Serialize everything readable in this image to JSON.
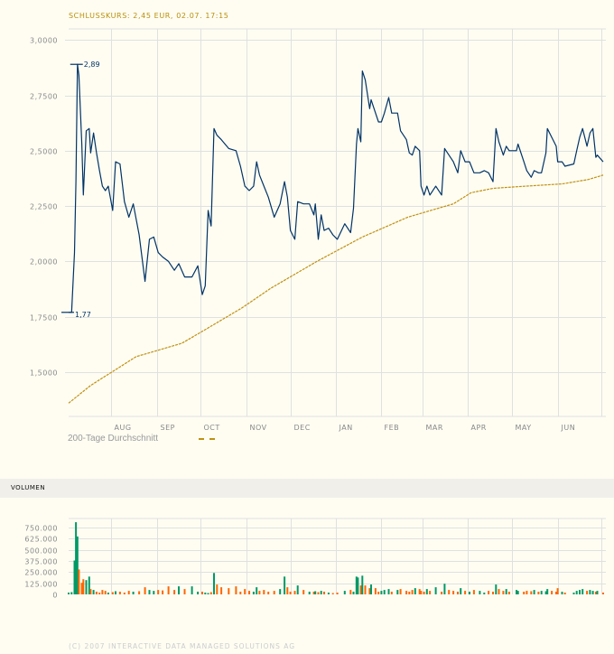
{
  "header": {
    "title": "SCHLUSSKURS: 2,45 EUR, 02.07. 17:15"
  },
  "legend": {
    "label": "200-Tage Durchschnitt"
  },
  "volume_section": {
    "title": "VOLUMEN"
  },
  "footer": {
    "copyright": "(C) 2007 INTERACTIVE DATA MANAGED SOLUTIONS AG"
  },
  "colors": {
    "background": "#fffdf2",
    "grid": "#e0e0e0",
    "price_line": "#003366",
    "moving_average": "#c09010",
    "volume_up": "#009966",
    "volume_down": "#ff6600",
    "title": "#b8900a"
  },
  "chart_data": [
    {
      "type": "line",
      "title": "SCHLUSSKURS: 2,45 EUR, 02.07. 17:15",
      "xlim": [
        "2006-07-03",
        "2007-07-02"
      ],
      "ylim": [
        1.3,
        3.05
      ],
      "grid": true,
      "legend_placement": "bottom-left",
      "x_ticks": [
        {
          "date": "2006-08-01",
          "label": "AUG"
        },
        {
          "date": "2006-09-01",
          "label": "SEP"
        },
        {
          "date": "2006-10-01",
          "label": "OCT"
        },
        {
          "date": "2006-11-01",
          "label": "NOV"
        },
        {
          "date": "2006-12-01",
          "label": "DEC"
        },
        {
          "date": "2007-01-01",
          "label": "JAN"
        },
        {
          "date": "2007-02-01",
          "label": "FEB"
        },
        {
          "date": "2007-03-01",
          "label": "MAR"
        },
        {
          "date": "2007-04-01",
          "label": "APR"
        },
        {
          "date": "2007-05-01",
          "label": "MAY"
        },
        {
          "date": "2007-06-01",
          "label": "JUN"
        },
        {
          "date": "2007-07-01",
          "label": ""
        }
      ],
      "y_ticks": [
        {
          "value": 3.0,
          "label": "3,0000"
        },
        {
          "value": 2.75,
          "label": "2,7500"
        },
        {
          "value": 2.5,
          "label": "2,5000"
        },
        {
          "value": 2.25,
          "label": "2,2500"
        },
        {
          "value": 2.0,
          "label": "2,0000"
        },
        {
          "value": 1.75,
          "label": "1,7500"
        },
        {
          "value": 1.5,
          "label": "1,5000"
        }
      ],
      "annotations": [
        {
          "date": "2006-07-09",
          "value": 2.89,
          "label": "2,89",
          "kind": "high"
        },
        {
          "date": "2006-07-03",
          "value": 1.77,
          "label": "1,77",
          "kind": "low"
        }
      ],
      "series": [
        {
          "columns": [
            "date",
            "close",
            "volume"
          ],
          "points": [
            [
              "2006-07-03",
              1.77,
              20000
            ],
            [
              "2006-07-05",
              1.77,
              25000
            ],
            [
              "2006-07-07",
              2.04,
              380000
            ],
            [
              "2006-07-08",
              2.36,
              810000
            ],
            [
              "2006-07-09",
              2.89,
              650000
            ],
            [
              "2006-07-10",
              2.84,
              280000
            ],
            [
              "2006-07-12",
              2.53,
              130000
            ],
            [
              "2006-07-13",
              2.3,
              170000
            ],
            [
              "2006-07-15",
              2.59,
              160000
            ],
            [
              "2006-07-17",
              2.6,
              200000
            ],
            [
              "2006-07-18",
              2.49,
              60000
            ],
            [
              "2006-07-20",
              2.58,
              50000
            ],
            [
              "2006-07-22",
              2.49,
              30000
            ],
            [
              "2006-07-24",
              2.41,
              20000
            ],
            [
              "2006-07-26",
              2.34,
              50000
            ],
            [
              "2006-07-28",
              2.32,
              40000
            ],
            [
              "2006-07-30",
              2.34,
              20000
            ],
            [
              "2006-08-02",
              2.23,
              25000
            ],
            [
              "2006-08-04",
              2.45,
              35000
            ],
            [
              "2006-08-07",
              2.44,
              30000
            ],
            [
              "2006-08-10",
              2.27,
              20000
            ],
            [
              "2006-08-13",
              2.2,
              40000
            ],
            [
              "2006-08-16",
              2.26,
              30000
            ],
            [
              "2006-08-20",
              2.12,
              35000
            ],
            [
              "2006-08-24",
              1.91,
              80000
            ],
            [
              "2006-08-27",
              2.1,
              50000
            ],
            [
              "2006-08-30",
              2.11,
              40000
            ],
            [
              "2006-09-02",
              2.04,
              50000
            ],
            [
              "2006-09-05",
              2.02,
              45000
            ],
            [
              "2006-09-09",
              2.0,
              90000
            ],
            [
              "2006-09-13",
              1.96,
              50000
            ],
            [
              "2006-09-16",
              1.99,
              90000
            ],
            [
              "2006-09-20",
              1.93,
              60000
            ],
            [
              "2006-09-25",
              1.93,
              90000
            ],
            [
              "2006-09-29",
              1.98,
              30000
            ],
            [
              "2006-10-02",
              1.85,
              30000
            ],
            [
              "2006-10-04",
              1.89,
              20000
            ],
            [
              "2006-10-06",
              2.23,
              15000
            ],
            [
              "2006-10-08",
              2.16,
              25000
            ],
            [
              "2006-10-10",
              2.6,
              240000
            ],
            [
              "2006-10-12",
              2.57,
              110000
            ],
            [
              "2006-10-15",
              2.55,
              80000
            ],
            [
              "2006-10-20",
              2.51,
              70000
            ],
            [
              "2006-10-25",
              2.5,
              90000
            ],
            [
              "2006-10-28",
              2.43,
              30000
            ],
            [
              "2006-10-31",
              2.34,
              60000
            ],
            [
              "2006-11-03",
              2.32,
              40000
            ],
            [
              "2006-11-06",
              2.34,
              30000
            ],
            [
              "2006-11-08",
              2.45,
              80000
            ],
            [
              "2006-11-10",
              2.39,
              40000
            ],
            [
              "2006-11-13",
              2.34,
              50000
            ],
            [
              "2006-11-16",
              2.29,
              30000
            ],
            [
              "2006-11-20",
              2.2,
              40000
            ],
            [
              "2006-11-24",
              2.26,
              60000
            ],
            [
              "2006-11-27",
              2.36,
              200000
            ],
            [
              "2006-11-29",
              2.29,
              80000
            ],
            [
              "2006-12-01",
              2.14,
              30000
            ],
            [
              "2006-12-04",
              2.1,
              40000
            ],
            [
              "2006-12-06",
              2.27,
              100000
            ],
            [
              "2006-12-10",
              2.26,
              50000
            ],
            [
              "2006-12-14",
              2.26,
              30000
            ],
            [
              "2006-12-17",
              2.21,
              30000
            ],
            [
              "2006-12-18",
              2.26,
              35000
            ],
            [
              "2006-12-20",
              2.1,
              25000
            ],
            [
              "2006-12-22",
              2.21,
              40000
            ],
            [
              "2006-12-24",
              2.14,
              30000
            ],
            [
              "2006-12-27",
              2.15,
              20000
            ],
            [
              "2006-12-30",
              2.12,
              15000
            ],
            [
              "2007-01-02",
              2.1,
              20000
            ],
            [
              "2007-01-07",
              2.17,
              40000
            ],
            [
              "2007-01-11",
              2.13,
              50000
            ],
            [
              "2007-01-13",
              2.24,
              30000
            ],
            [
              "2007-01-15",
              2.53,
              200000
            ],
            [
              "2007-01-16",
              2.6,
              190000
            ],
            [
              "2007-01-18",
              2.54,
              100000
            ],
            [
              "2007-01-19",
              2.86,
              210000
            ],
            [
              "2007-01-21",
              2.82,
              100000
            ],
            [
              "2007-01-24",
              2.69,
              70000
            ],
            [
              "2007-01-25",
              2.73,
              110000
            ],
            [
              "2007-01-28",
              2.67,
              70000
            ],
            [
              "2007-01-30",
              2.63,
              30000
            ],
            [
              "2007-02-01",
              2.63,
              40000
            ],
            [
              "2007-02-03",
              2.67,
              50000
            ],
            [
              "2007-02-06",
              2.74,
              60000
            ],
            [
              "2007-02-08",
              2.67,
              30000
            ],
            [
              "2007-02-12",
              2.67,
              50000
            ],
            [
              "2007-02-14",
              2.59,
              60000
            ],
            [
              "2007-02-18",
              2.55,
              40000
            ],
            [
              "2007-02-20",
              2.49,
              30000
            ],
            [
              "2007-02-22",
              2.48,
              50000
            ],
            [
              "2007-02-24",
              2.52,
              70000
            ],
            [
              "2007-02-27",
              2.5,
              60000
            ],
            [
              "2007-02-28",
              2.34,
              40000
            ],
            [
              "2007-03-02",
              2.3,
              30000
            ],
            [
              "2007-03-04",
              2.34,
              60000
            ],
            [
              "2007-03-06",
              2.3,
              40000
            ],
            [
              "2007-03-10",
              2.34,
              80000
            ],
            [
              "2007-03-14",
              2.3,
              30000
            ],
            [
              "2007-03-16",
              2.51,
              120000
            ],
            [
              "2007-03-19",
              2.48,
              50000
            ],
            [
              "2007-03-22",
              2.45,
              40000
            ],
            [
              "2007-03-25",
              2.4,
              30000
            ],
            [
              "2007-03-27",
              2.5,
              70000
            ],
            [
              "2007-03-30",
              2.45,
              40000
            ],
            [
              "2007-04-02",
              2.45,
              30000
            ],
            [
              "2007-04-05",
              2.4,
              50000
            ],
            [
              "2007-04-09",
              2.4,
              40000
            ],
            [
              "2007-04-12",
              2.41,
              20000
            ],
            [
              "2007-04-15",
              2.4,
              40000
            ],
            [
              "2007-04-18",
              2.36,
              30000
            ],
            [
              "2007-04-20",
              2.6,
              110000
            ],
            [
              "2007-04-22",
              2.54,
              60000
            ],
            [
              "2007-04-25",
              2.48,
              40000
            ],
            [
              "2007-04-27",
              2.52,
              60000
            ],
            [
              "2007-04-29",
              2.5,
              30000
            ],
            [
              "2007-05-04",
              2.5,
              50000
            ],
            [
              "2007-05-05",
              2.53,
              40000
            ],
            [
              "2007-05-09",
              2.45,
              30000
            ],
            [
              "2007-05-11",
              2.41,
              40000
            ],
            [
              "2007-05-14",
              2.38,
              35000
            ],
            [
              "2007-05-16",
              2.41,
              50000
            ],
            [
              "2007-05-19",
              2.4,
              30000
            ],
            [
              "2007-05-21",
              2.4,
              40000
            ],
            [
              "2007-05-24",
              2.49,
              35000
            ],
            [
              "2007-05-25",
              2.6,
              60000
            ],
            [
              "2007-05-28",
              2.56,
              40000
            ],
            [
              "2007-05-31",
              2.52,
              30000
            ],
            [
              "2007-06-01",
              2.45,
              70000
            ],
            [
              "2007-06-04",
              2.45,
              30000
            ],
            [
              "2007-06-06",
              2.43,
              20000
            ],
            [
              "2007-06-12",
              2.44,
              20000
            ],
            [
              "2007-06-14",
              2.5,
              40000
            ],
            [
              "2007-06-16",
              2.56,
              50000
            ],
            [
              "2007-06-18",
              2.6,
              60000
            ],
            [
              "2007-06-21",
              2.52,
              40000
            ],
            [
              "2007-06-23",
              2.58,
              50000
            ],
            [
              "2007-06-25",
              2.6,
              40000
            ],
            [
              "2007-06-27",
              2.47,
              30000
            ],
            [
              "2007-06-28",
              2.48,
              40000
            ],
            [
              "2007-07-02",
              2.45,
              20000
            ]
          ]
        },
        {
          "name": "200-Tage Durchschnitt",
          "points": [
            [
              "2006-07-03",
              1.36
            ],
            [
              "2006-07-18",
              1.44
            ],
            [
              "2006-08-18",
              1.57
            ],
            [
              "2006-09-18",
              1.63
            ],
            [
              "2006-10-01",
              1.68
            ],
            [
              "2006-10-29",
              1.79
            ],
            [
              "2006-11-18",
              1.88
            ],
            [
              "2006-12-19",
              2.0
            ],
            [
              "2007-01-19",
              2.11
            ],
            [
              "2007-02-19",
              2.2
            ],
            [
              "2007-03-22",
              2.26
            ],
            [
              "2007-04-03",
              2.31
            ],
            [
              "2007-04-18",
              2.33
            ],
            [
              "2007-05-10",
              2.34
            ],
            [
              "2007-06-04",
              2.35
            ],
            [
              "2007-06-22",
              2.37
            ],
            [
              "2007-07-02",
              2.39
            ]
          ]
        }
      ]
    },
    {
      "type": "bar",
      "title": "VOLUMEN",
      "ylim": [
        0,
        750000
      ],
      "grid": true,
      "y_ticks": [
        {
          "value": 750000,
          "label": "750.000"
        },
        {
          "value": 625000,
          "label": "625.000"
        },
        {
          "value": 500000,
          "label": "500.000"
        },
        {
          "value": 375000,
          "label": "375.000"
        },
        {
          "value": 250000,
          "label": "250.000"
        },
        {
          "value": 125000,
          "label": "125.000"
        },
        {
          "value": 0,
          "label": "0"
        }
      ],
      "values_source": "volume column of price series; green = close up, orange = close down"
    }
  ]
}
